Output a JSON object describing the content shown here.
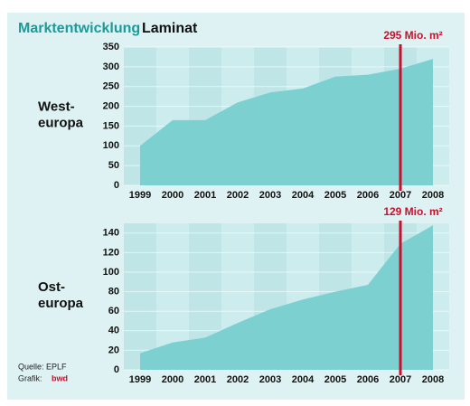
{
  "title": "Marktentwicklung",
  "subtitle": "Laminat",
  "source": "Quelle: EPLF",
  "credit_label": "Grafik:",
  "credit": "bwd",
  "chart_data": [
    {
      "type": "area",
      "region_lines": [
        "West-",
        "europa"
      ],
      "categories": [
        "1999",
        "2000",
        "2001",
        "2002",
        "2003",
        "2004",
        "2005",
        "2006",
        "2007",
        "2008"
      ],
      "values": [
        100,
        165,
        165,
        210,
        235,
        245,
        275,
        280,
        295,
        320
      ],
      "color": "#7dd0d0",
      "ylim": [
        0,
        350
      ],
      "yticks": [
        0,
        50,
        100,
        150,
        200,
        250,
        300,
        350
      ],
      "grid": true,
      "annotation": {
        "text": "295 Mio. m²",
        "category": "2007",
        "color": "#c8102e"
      }
    },
    {
      "type": "area",
      "region_lines": [
        "Ost-",
        "europa"
      ],
      "categories": [
        "1999",
        "2000",
        "2001",
        "2002",
        "2003",
        "2004",
        "2005",
        "2006",
        "2007",
        "2008"
      ],
      "values": [
        17,
        28,
        33,
        48,
        62,
        72,
        80,
        87,
        129,
        148
      ],
      "color": "#7dd0d0",
      "ylim": [
        0,
        150
      ],
      "yticks": [
        0,
        20,
        40,
        60,
        80,
        100,
        120,
        140
      ],
      "grid": true,
      "annotation": {
        "text": "129 Mio. m²",
        "category": "2007",
        "color": "#c8102e"
      }
    }
  ]
}
